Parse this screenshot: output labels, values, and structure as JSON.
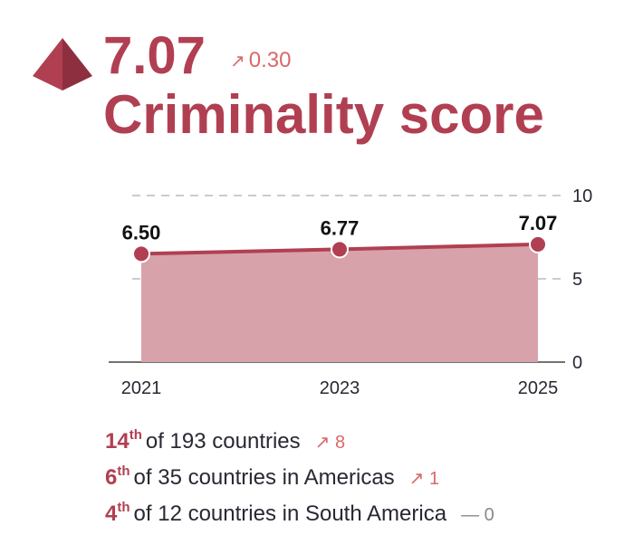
{
  "header": {
    "score": "7.07",
    "change_arrow": "↗",
    "change_value": "0.30",
    "title": "Criminality score",
    "icon": "pyramid-icon"
  },
  "colors": {
    "accent": "#b13f52",
    "change": "#d86a6a",
    "area_fill": "#d7a2a9",
    "line": "#b13f52",
    "grid": "#bbbbbb"
  },
  "chart_data": {
    "type": "area",
    "x": [
      "2021",
      "2023",
      "2025"
    ],
    "series": [
      {
        "values": [
          6.5,
          6.77,
          7.07
        ]
      }
    ],
    "data_labels": [
      "6.50",
      "6.77",
      "7.07"
    ],
    "ylim": [
      0,
      10
    ],
    "yticks": [
      "0",
      "5",
      "10"
    ],
    "y_axis_side": "right",
    "grid": "dashed horizontal at 5 and 10"
  },
  "ranks": [
    {
      "num": "14",
      "suffix": "th",
      "text": "of 193 countries",
      "arrow": "↗",
      "change": "8",
      "flat": false
    },
    {
      "num": "6",
      "suffix": "th",
      "text": "of 35 countries in Americas",
      "arrow": "↗",
      "change": "1",
      "flat": false
    },
    {
      "num": "4",
      "suffix": "th",
      "text": "of 12 countries in South America",
      "arrow": "—",
      "change": "0",
      "flat": true
    }
  ]
}
